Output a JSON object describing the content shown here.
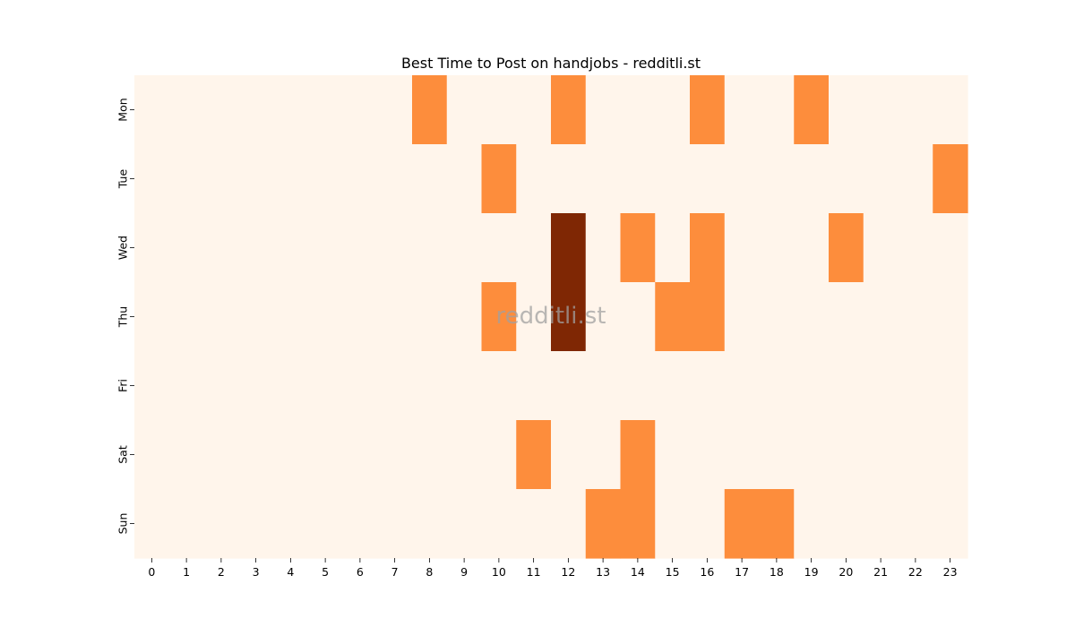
{
  "chart_data": {
    "type": "heatmap",
    "title": "Best Time to Post on handjobs - redditli.st",
    "watermark": "redditli.st",
    "x_categories": [
      "0",
      "1",
      "2",
      "3",
      "4",
      "5",
      "6",
      "7",
      "8",
      "9",
      "10",
      "11",
      "12",
      "13",
      "14",
      "15",
      "16",
      "17",
      "18",
      "19",
      "20",
      "21",
      "22",
      "23"
    ],
    "y_categories": [
      "Mon",
      "Tue",
      "Wed",
      "Thu",
      "Fri",
      "Sat",
      "Sun"
    ],
    "values": [
      [
        0,
        0,
        0,
        0,
        0,
        0,
        0,
        0,
        1,
        0,
        0,
        0,
        1,
        0,
        0,
        0,
        1,
        0,
        0,
        1,
        0,
        0,
        0,
        0
      ],
      [
        0,
        0,
        0,
        0,
        0,
        0,
        0,
        0,
        0,
        0,
        1,
        0,
        0,
        0,
        0,
        0,
        0,
        0,
        0,
        0,
        0,
        0,
        0,
        1
      ],
      [
        0,
        0,
        0,
        0,
        0,
        0,
        0,
        0,
        0,
        0,
        0,
        0,
        2,
        0,
        1,
        0,
        1,
        0,
        0,
        0,
        1,
        0,
        0,
        0
      ],
      [
        0,
        0,
        0,
        0,
        0,
        0,
        0,
        0,
        0,
        0,
        1,
        0,
        2,
        0,
        0,
        1,
        1,
        0,
        0,
        0,
        0,
        0,
        0,
        0
      ],
      [
        0,
        0,
        0,
        0,
        0,
        0,
        0,
        0,
        0,
        0,
        0,
        0,
        0,
        0,
        0,
        0,
        0,
        0,
        0,
        0,
        0,
        0,
        0,
        0
      ],
      [
        0,
        0,
        0,
        0,
        0,
        0,
        0,
        0,
        0,
        0,
        0,
        1,
        0,
        0,
        1,
        0,
        0,
        0,
        0,
        0,
        0,
        0,
        0,
        0
      ],
      [
        0,
        0,
        0,
        0,
        0,
        0,
        0,
        0,
        0,
        0,
        0,
        0,
        0,
        1,
        1,
        0,
        0,
        1,
        1,
        0,
        0,
        0,
        0,
        0
      ]
    ],
    "color_scale": {
      "0": "#fff5eb",
      "1": "#fd8d3c",
      "2": "#7f2704"
    },
    "xlabel": "",
    "ylabel": "",
    "grid": false,
    "legend": "none"
  }
}
